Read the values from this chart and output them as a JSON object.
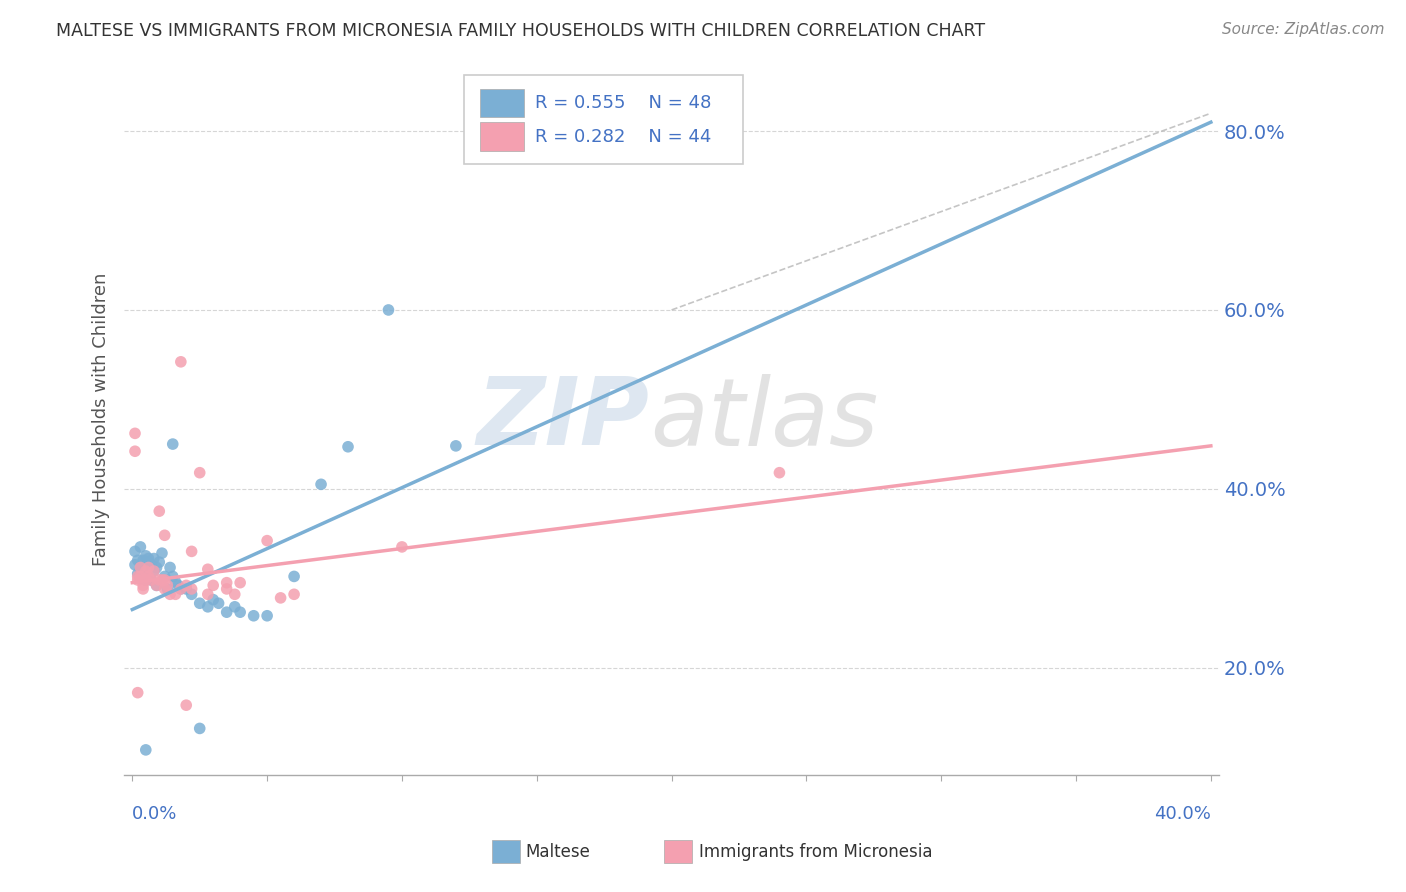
{
  "title": "MALTESE VS IMMIGRANTS FROM MICRONESIA FAMILY HOUSEHOLDS WITH CHILDREN CORRELATION CHART",
  "source": "Source: ZipAtlas.com",
  "ylabel": "Family Households with Children",
  "y_ticks": [
    0.2,
    0.4,
    0.6,
    0.8
  ],
  "y_tick_labels": [
    "20.0%",
    "40.0%",
    "60.0%",
    "80.0%"
  ],
  "x_ticks": [
    0.0,
    0.05,
    0.1,
    0.15,
    0.2,
    0.25,
    0.3,
    0.35,
    0.4
  ],
  "blue_r": "0.555",
  "blue_n": "48",
  "pink_r": "0.282",
  "pink_n": "44",
  "blue_color": "#7BAFD4",
  "pink_color": "#F4A0B0",
  "blue_scatter": [
    [
      0.001,
      0.33
    ],
    [
      0.001,
      0.315
    ],
    [
      0.002,
      0.32
    ],
    [
      0.002,
      0.305
    ],
    [
      0.003,
      0.335
    ],
    [
      0.003,
      0.31
    ],
    [
      0.003,
      0.3
    ],
    [
      0.004,
      0.32
    ],
    [
      0.004,
      0.308
    ],
    [
      0.005,
      0.325
    ],
    [
      0.005,
      0.312
    ],
    [
      0.005,
      0.298
    ],
    [
      0.006,
      0.322
    ],
    [
      0.006,
      0.318
    ],
    [
      0.007,
      0.315
    ],
    [
      0.007,
      0.298
    ],
    [
      0.008,
      0.308
    ],
    [
      0.008,
      0.322
    ],
    [
      0.009,
      0.312
    ],
    [
      0.009,
      0.292
    ],
    [
      0.01,
      0.318
    ],
    [
      0.011,
      0.328
    ],
    [
      0.012,
      0.302
    ],
    [
      0.013,
      0.288
    ],
    [
      0.014,
      0.312
    ],
    [
      0.015,
      0.302
    ],
    [
      0.016,
      0.296
    ],
    [
      0.017,
      0.292
    ],
    [
      0.018,
      0.288
    ],
    [
      0.02,
      0.288
    ],
    [
      0.022,
      0.282
    ],
    [
      0.025,
      0.272
    ],
    [
      0.028,
      0.268
    ],
    [
      0.03,
      0.276
    ],
    [
      0.032,
      0.272
    ],
    [
      0.035,
      0.262
    ],
    [
      0.038,
      0.268
    ],
    [
      0.04,
      0.262
    ],
    [
      0.045,
      0.258
    ],
    [
      0.05,
      0.258
    ],
    [
      0.07,
      0.405
    ],
    [
      0.095,
      0.6
    ],
    [
      0.005,
      0.108
    ],
    [
      0.025,
      0.132
    ],
    [
      0.06,
      0.302
    ],
    [
      0.015,
      0.45
    ],
    [
      0.08,
      0.447
    ],
    [
      0.12,
      0.448
    ]
  ],
  "pink_scatter": [
    [
      0.001,
      0.462
    ],
    [
      0.001,
      0.442
    ],
    [
      0.002,
      0.302
    ],
    [
      0.002,
      0.298
    ],
    [
      0.003,
      0.312
    ],
    [
      0.003,
      0.302
    ],
    [
      0.004,
      0.292
    ],
    [
      0.004,
      0.288
    ],
    [
      0.005,
      0.308
    ],
    [
      0.005,
      0.298
    ],
    [
      0.006,
      0.312
    ],
    [
      0.006,
      0.302
    ],
    [
      0.007,
      0.298
    ],
    [
      0.008,
      0.308
    ],
    [
      0.009,
      0.292
    ],
    [
      0.01,
      0.298
    ],
    [
      0.011,
      0.298
    ],
    [
      0.012,
      0.288
    ],
    [
      0.013,
      0.292
    ],
    [
      0.014,
      0.282
    ],
    [
      0.016,
      0.282
    ],
    [
      0.018,
      0.288
    ],
    [
      0.02,
      0.292
    ],
    [
      0.022,
      0.288
    ],
    [
      0.018,
      0.542
    ],
    [
      0.028,
      0.282
    ],
    [
      0.03,
      0.292
    ],
    [
      0.025,
      0.418
    ],
    [
      0.035,
      0.288
    ],
    [
      0.038,
      0.282
    ],
    [
      0.04,
      0.295
    ],
    [
      0.012,
      0.348
    ],
    [
      0.05,
      0.342
    ],
    [
      0.06,
      0.282
    ],
    [
      0.002,
      0.172
    ],
    [
      0.01,
      0.375
    ],
    [
      0.1,
      0.335
    ],
    [
      0.24,
      0.418
    ],
    [
      0.02,
      0.158
    ],
    [
      0.022,
      0.33
    ],
    [
      0.055,
      0.278
    ],
    [
      0.035,
      0.295
    ],
    [
      0.028,
      0.31
    ],
    [
      0.012,
      0.298
    ]
  ],
  "blue_line_x": [
    0.0,
    0.4
  ],
  "blue_line_y": [
    0.265,
    0.81
  ],
  "pink_line_x": [
    0.0,
    0.4
  ],
  "pink_line_y": [
    0.295,
    0.448
  ],
  "diag_line_x": [
    0.2,
    0.4
  ],
  "diag_line_y": [
    0.6,
    0.82
  ],
  "watermark_zip": "ZIP",
  "watermark_atlas": "atlas",
  "background_color": "#ffffff",
  "grid_color": "#cccccc",
  "xlim": [
    -0.003,
    0.403
  ],
  "ylim": [
    0.08,
    0.875
  ]
}
